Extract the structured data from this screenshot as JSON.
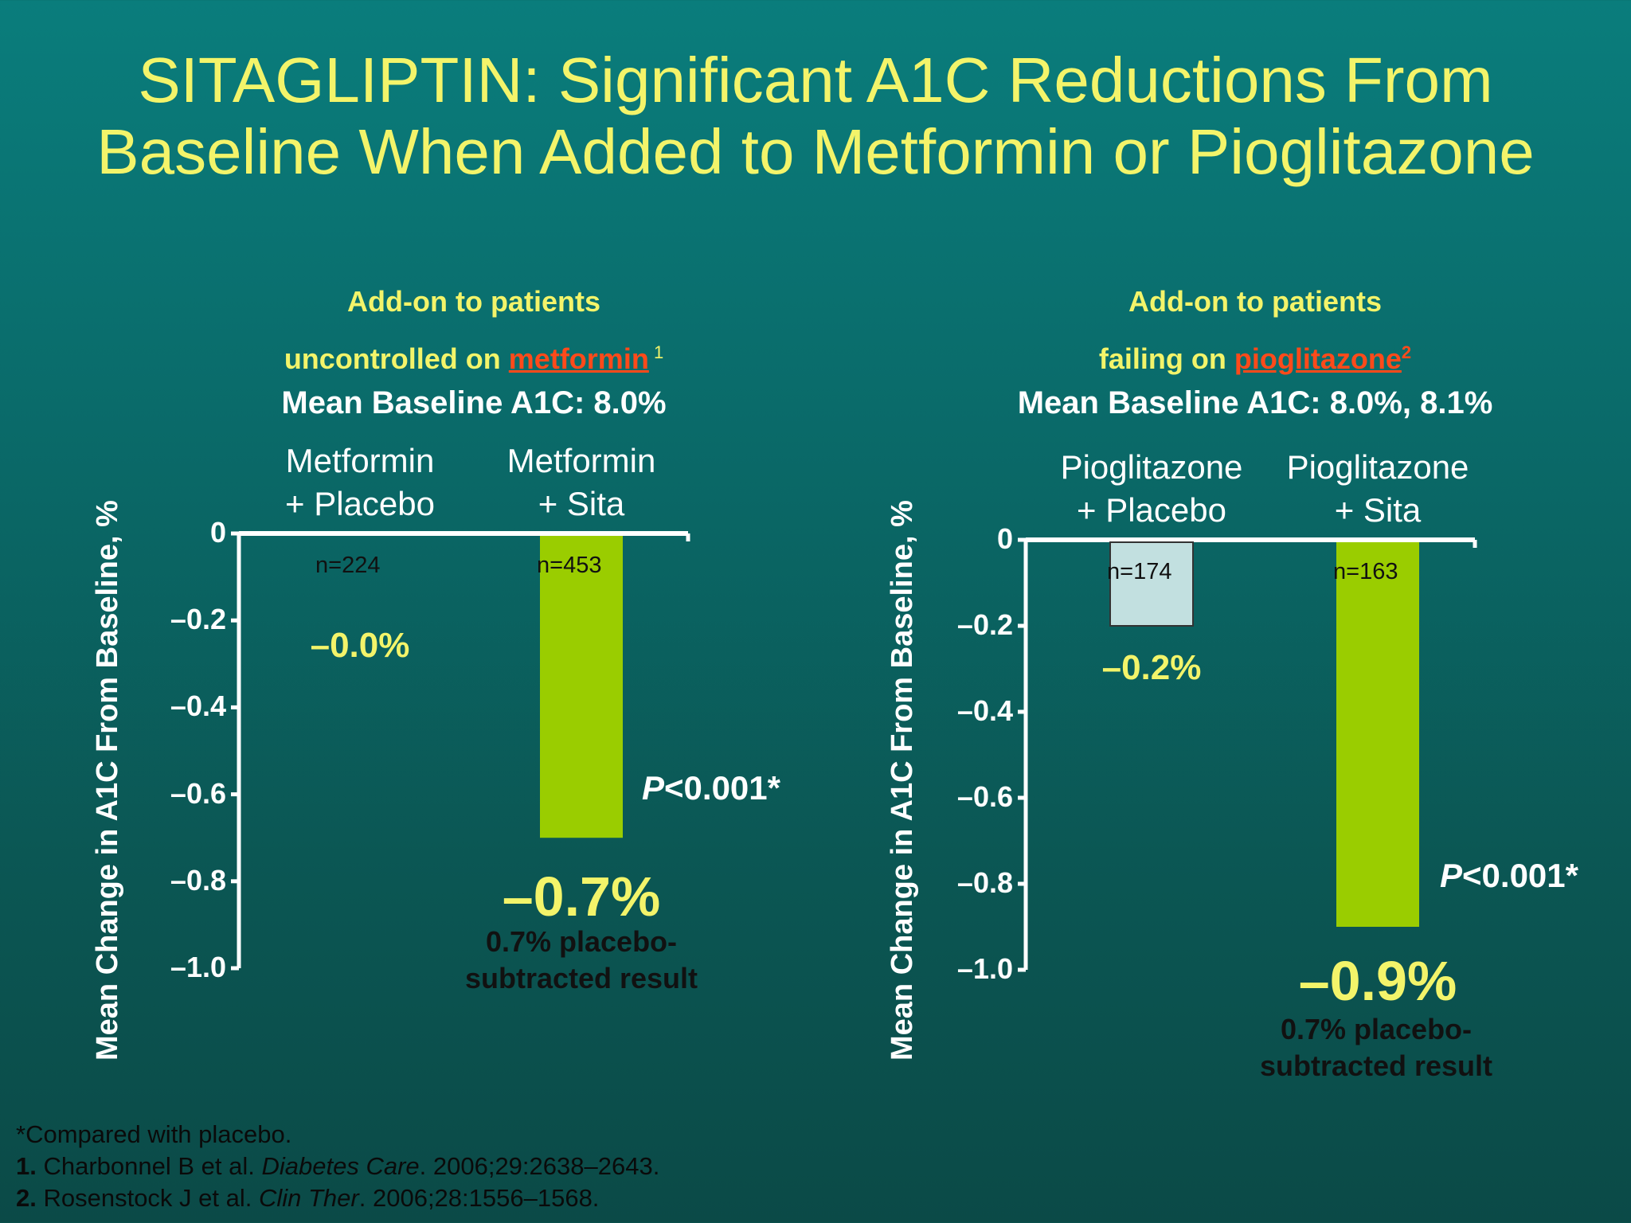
{
  "title": {
    "line1": "SITAGLIPTIN: Significant A1C Reductions From",
    "line2": "Baseline When Added to Metformin or Pioglitazone"
  },
  "colors": {
    "title": "#f3f46a",
    "drug": "#ff4a1a",
    "sita_bar": "#9acd00",
    "placebo_bar": "#c2e0e0"
  },
  "panels": [
    {
      "heading1": "Add-on to patients",
      "heading2_prefix": "uncontrolled on ",
      "drug": "metformin",
      "ref": "1",
      "baseline": "Mean Baseline A1C: 8.0%",
      "ylabel": "Mean Change in A1C From Baseline, %",
      "pvalue_italic": "P",
      "pvalue_rest": "<0.001*",
      "note_line1": "0.7% placebo-",
      "note_line2": "subtracted result"
    },
    {
      "heading1": "Add-on to patients",
      "heading2_prefix": "failing on ",
      "drug": "pioglitazone",
      "ref": "2",
      "baseline": "Mean Baseline A1C: 8.0%, 8.1%",
      "ylabel": "Mean Change in A1C From Baseline, %",
      "pvalue_italic": "P",
      "pvalue_rest": "<0.001*",
      "note_line1": "0.7% placebo-",
      "note_line2": "subtracted result"
    }
  ],
  "chart_data": [
    {
      "type": "bar",
      "categories": [
        "Metformin + Placebo",
        "Metformin + Sita"
      ],
      "category_lines": [
        [
          "Metformin",
          "+ Placebo"
        ],
        [
          "Metformin",
          "+ Sita"
        ]
      ],
      "values": [
        0.0,
        -0.7
      ],
      "n_labels": [
        "n=224",
        "n=453"
      ],
      "value_labels": [
        "–0.0%",
        "–0.7%"
      ],
      "ylabel": "Mean Change in A1C From Baseline, %",
      "ylim": [
        -1.0,
        0
      ],
      "yticks": [
        0,
        -0.2,
        -0.4,
        -0.6,
        -0.8,
        -1.0
      ],
      "ytick_labels": [
        "0",
        "–0.2",
        "–0.4",
        "–0.6",
        "–0.8",
        "–1.0"
      ]
    },
    {
      "type": "bar",
      "categories": [
        "Pioglitazone + Placebo",
        "Pioglitazone + Sita"
      ],
      "category_lines": [
        [
          "Pioglitazone",
          "+ Placebo"
        ],
        [
          "Pioglitazone",
          "+ Sita"
        ]
      ],
      "values": [
        -0.2,
        -0.9
      ],
      "n_labels": [
        "n=174",
        "n=163"
      ],
      "value_labels": [
        "–0.2%",
        "–0.9%"
      ],
      "ylabel": "Mean Change in A1C From Baseline, %",
      "ylim": [
        -1.0,
        0
      ],
      "yticks": [
        0,
        -0.2,
        -0.4,
        -0.6,
        -0.8,
        -1.0
      ],
      "ytick_labels": [
        "0",
        "–0.2",
        "–0.4",
        "–0.6",
        "–0.8",
        "–1.0"
      ]
    }
  ],
  "footnotes": {
    "star": "*Compared with placebo.",
    "ref1_num": "1.",
    "ref1_authors": " Charbonnel B et al. ",
    "ref1_journal": "Diabetes Care",
    "ref1_rest": ". 2006;29:2638–2643.",
    "ref2_num": "2.",
    "ref2_authors": " Rosenstock J et al. ",
    "ref2_journal": "Clin Ther",
    "ref2_rest": ". 2006;28:1556–1568."
  }
}
